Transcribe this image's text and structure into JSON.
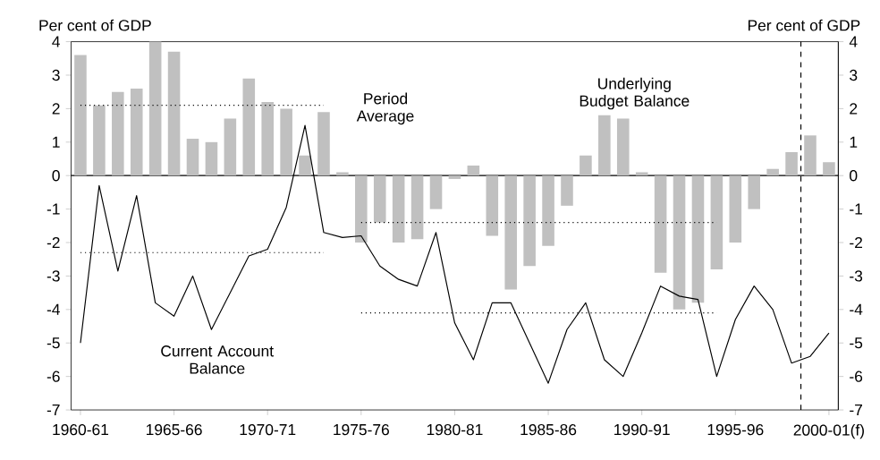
{
  "chart_data": {
    "type": "bar",
    "categories": [
      "1960-61",
      null,
      null,
      null,
      null,
      "1965-66",
      null,
      null,
      null,
      null,
      "1970-71",
      null,
      null,
      null,
      null,
      "1975-76",
      null,
      null,
      null,
      null,
      "1980-81",
      null,
      null,
      null,
      null,
      "1985-86",
      null,
      null,
      null,
      null,
      "1990-91",
      null,
      null,
      null,
      null,
      "1995-96",
      null,
      null,
      null,
      null,
      "2000-01(f)"
    ],
    "series": [
      {
        "name": "Underlying Budget Balance",
        "color": "#c0c0c0",
        "values": [
          3.6,
          2.1,
          2.5,
          2.6,
          4.0,
          3.7,
          1.1,
          1.0,
          1.7,
          2.9,
          2.2,
          2.0,
          0.6,
          1.9,
          0.1,
          -2.0,
          -1.4,
          -2.0,
          -1.9,
          -1.0,
          -0.1,
          0.3,
          -1.8,
          -3.4,
          -2.7,
          -2.1,
          -0.9,
          0.6,
          1.8,
          1.7,
          0.1,
          -2.9,
          -4.0,
          -3.8,
          -2.8,
          -2.0,
          -1.0,
          0.2,
          0.7,
          1.2,
          0.4
        ]
      },
      {
        "name": "Current Account Balance",
        "type": "line",
        "color": "#000000",
        "values": [
          -5.0,
          -0.3,
          -2.85,
          -0.6,
          -3.8,
          -4.2,
          -3.0,
          -4.6,
          -3.5,
          -2.4,
          -2.2,
          -0.95,
          1.5,
          -1.7,
          -1.85,
          -1.8,
          -2.7,
          -3.1,
          -3.3,
          -1.7,
          -4.4,
          -5.5,
          -3.8,
          -3.8,
          -5.0,
          -6.2,
          -4.6,
          -3.8,
          -5.5,
          -6.0,
          -4.7,
          -3.3,
          -3.6,
          -3.7,
          -6.0,
          -4.3,
          -3.3,
          -4.0,
          -5.6,
          -5.4,
          -4.7
        ]
      },
      {
        "type": "line",
        "color": "#000000",
        "line_style": "dotted",
        "values": [
          2.1,
          2.1,
          2.1,
          2.1,
          2.1,
          2.1,
          2.1,
          2.1,
          2.1,
          2.1,
          2.1,
          2.1,
          2.1,
          2.1,
          null,
          null,
          null,
          null,
          null,
          null,
          null,
          null,
          null,
          null,
          null,
          null,
          null,
          null,
          null,
          null,
          null,
          null,
          null,
          null,
          null,
          null,
          null,
          null,
          null,
          null,
          null
        ]
      },
      {
        "type": "line",
        "color": "#000000",
        "line_style": "dotted",
        "values": [
          null,
          null,
          null,
          null,
          null,
          null,
          null,
          null,
          null,
          null,
          null,
          null,
          null,
          null,
          null,
          -1.4,
          -1.4,
          -1.4,
          -1.4,
          -1.4,
          -1.4,
          -1.4,
          -1.4,
          -1.4,
          -1.4,
          -1.4,
          -1.4,
          -1.4,
          -1.4,
          -1.4,
          -1.4,
          -1.4,
          -1.4,
          -1.4,
          -1.4,
          null,
          null,
          null,
          null,
          null,
          null
        ]
      },
      {
        "type": "line",
        "color": "#000000",
        "line_style": "dotted",
        "values": [
          -2.3,
          -2.3,
          -2.3,
          -2.3,
          -2.3,
          -2.3,
          -2.3,
          -2.3,
          -2.3,
          -2.3,
          -2.3,
          -2.3,
          -2.3,
          -2.3,
          null,
          null,
          null,
          null,
          null,
          null,
          null,
          null,
          null,
          null,
          null,
          null,
          null,
          null,
          null,
          null,
          null,
          null,
          null,
          null,
          null,
          null,
          null,
          null,
          null,
          null,
          null
        ]
      },
      {
        "type": "line",
        "color": "#000000",
        "line_style": "dotted",
        "values": [
          null,
          null,
          null,
          null,
          null,
          null,
          null,
          null,
          null,
          null,
          null,
          null,
          null,
          null,
          null,
          -4.1,
          -4.1,
          -4.1,
          -4.1,
          -4.1,
          -4.1,
          -4.1,
          -4.1,
          -4.1,
          -4.1,
          -4.1,
          -4.1,
          -4.1,
          -4.1,
          -4.1,
          -4.1,
          -4.1,
          -4.1,
          -4.1,
          -4.1,
          null,
          null,
          null,
          null,
          null,
          null
        ]
      }
    ],
    "ylabel": "Per cent of GDP",
    "y2label": "Per cent of GDP",
    "ylim": [
      -7,
      4
    ],
    "yticks": [
      -7,
      -6,
      -5,
      -4,
      -3,
      -2,
      -1,
      0,
      1,
      2,
      3,
      4
    ],
    "y2lim": [
      -7,
      4
    ],
    "y2ticks": [
      -7,
      -6,
      -5,
      -4,
      -3,
      -2,
      -1,
      0,
      1,
      2,
      3,
      4
    ],
    "annotations": [
      "Period Average"
    ]
  }
}
